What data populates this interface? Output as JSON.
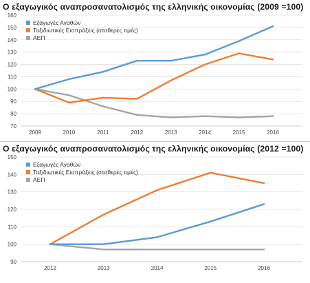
{
  "chart_data": [
    {
      "type": "line",
      "title": "Ο εξαγωγικός αναπροσανατολισμός της ελληνικής οικονομίας (2009 =100)",
      "x": [
        "2009",
        "2010",
        "2011",
        "2012",
        "2013",
        "2014",
        "2015",
        "2016"
      ],
      "ylim": [
        70,
        160
      ],
      "yticks": [
        70,
        80,
        90,
        100,
        110,
        120,
        130,
        140,
        150,
        160
      ],
      "grid": true,
      "legend_position": "top-left",
      "series": [
        {
          "name": "Εξαγωγές Αγαθών",
          "color": "#5b9bd5",
          "values": [
            100,
            108,
            114,
            123,
            123,
            128,
            139,
            151
          ]
        },
        {
          "name": "Ταξιδιωτικές Εισπράξεις (σταθερές τιμές)",
          "color": "#ed7d31",
          "values": [
            100,
            89,
            93,
            92,
            107,
            120,
            129,
            124
          ]
        },
        {
          "name": "ΑΕΠ",
          "color": "#a5a5a5",
          "values": [
            100,
            95,
            86,
            79,
            77,
            78,
            77,
            78
          ]
        }
      ]
    },
    {
      "type": "line",
      "title": "Ο εξαγωγικός αναπροσανατολισμός της ελληνικής οικονομίας (2012 =100)",
      "x": [
        "2012",
        "2013",
        "2014",
        "2015",
        "2016"
      ],
      "ylim": [
        90,
        150
      ],
      "yticks": [
        90,
        100,
        110,
        120,
        130,
        140,
        150
      ],
      "grid": true,
      "legend_position": "top-left",
      "series": [
        {
          "name": "Εξαγωγές Αγαθών",
          "color": "#5b9bd5",
          "values": [
            100,
            100,
            104,
            113,
            123
          ]
        },
        {
          "name": "Ταξιδιωτικές Εισπράξεις (σταθερές τιμές)",
          "color": "#ed7d31",
          "values": [
            100,
            117,
            131,
            141,
            135
          ]
        },
        {
          "name": "ΑΕΠ",
          "color": "#a5a5a5",
          "values": [
            100,
            97,
            97,
            97,
            97
          ]
        }
      ]
    }
  ]
}
